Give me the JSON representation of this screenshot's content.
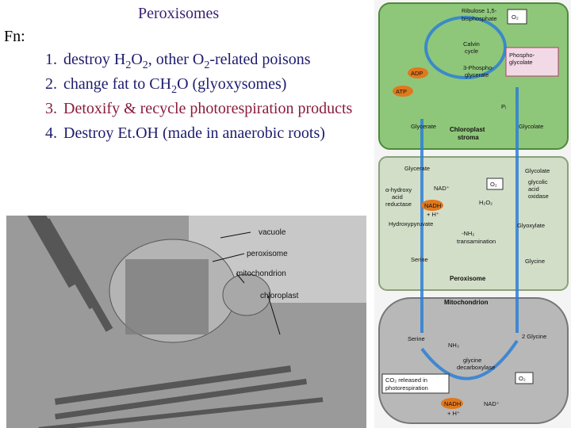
{
  "title": "Peroxisomes",
  "fn_label": "Fn:",
  "functions": [
    {
      "number": "1.",
      "runs": [
        "destroy H",
        "2",
        "O",
        "2",
        ", other O",
        "2",
        "-related poisons"
      ]
    },
    {
      "number": "2.",
      "runs": [
        "change fat to CH",
        "2",
        "O (glyoxysomes)"
      ]
    },
    {
      "number": "3.",
      "runs": [
        "Detoxify & recycle photorespiration products"
      ]
    },
    {
      "number": "4.",
      "runs": [
        "Destroy Et.OH (made in anaerobic roots)"
      ]
    }
  ],
  "micrograph": {
    "labels": [
      "vacuole",
      "peroxisome",
      "mitochondrion",
      "chloroplast"
    ]
  },
  "diagram": {
    "labels": [
      "Ribulose 1,5-",
      "bisphosphate",
      "O₂",
      "Calvin",
      "cycle",
      "3-Phospho-",
      "glycerate",
      "Phospho-",
      "glycolate",
      "ADP",
      "ATP",
      "Glycerate",
      "Chloroplast",
      "stroma",
      "Glycolate",
      "Pᵢ",
      "Glycerate",
      "Glycolate",
      "NAD⁺",
      "O₂",
      "glycolic",
      "acid",
      "oxidase",
      "α-hydroxy",
      "acid",
      "reductase",
      "NADH",
      "+ H⁺",
      "H₂O₂",
      "Hydroxypyruvate",
      "Glyoxylate",
      "-NH₂",
      "transamination",
      "Serine",
      "Glycine",
      "Peroxisome",
      "Mitochondrion",
      "Serine",
      "NH₃",
      "glycine",
      "decarboxylase",
      "2 Glycine",
      "CO₂ released in",
      "photorespiration",
      "O₂",
      "NADH",
      "+ H⁺",
      "NAD⁺"
    ]
  }
}
